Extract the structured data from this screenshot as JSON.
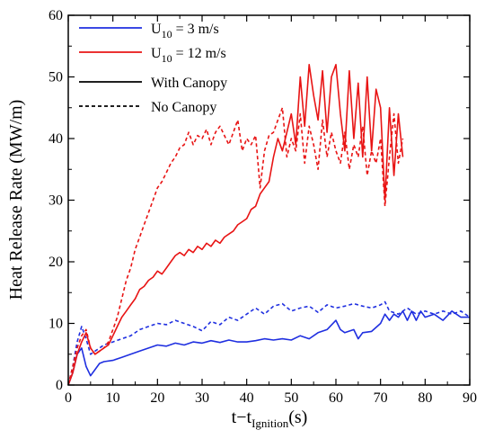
{
  "chart_data": {
    "type": "line",
    "title": "",
    "xlabel": {
      "main": "t−t",
      "sub": "Ignition",
      "tail": "(s)"
    },
    "ylabel": "Heat Release Rate (MW/m)",
    "xlim": [
      0,
      90
    ],
    "ylim": [
      0,
      60
    ],
    "xticks": [
      0,
      10,
      20,
      30,
      40,
      50,
      60,
      70,
      80,
      90
    ],
    "yticks": [
      0,
      10,
      20,
      30,
      40,
      50,
      60
    ],
    "xtick_labels": [
      "0",
      "10",
      "20",
      "30",
      "40",
      "50",
      "60",
      "70",
      "80",
      "90"
    ],
    "ytick_labels": [
      "0",
      "10",
      "20",
      "30",
      "40",
      "50",
      "60"
    ],
    "grid": false,
    "legend_position": "top-left",
    "legend": [
      {
        "prefix": "U",
        "sub": "10",
        "suffix": " = 3  m/s",
        "color": "#1f2fe0",
        "dash": "solid"
      },
      {
        "prefix": "U",
        "sub": "10",
        "suffix": " = 12  m/s",
        "color": "#e81414",
        "dash": "solid"
      },
      {
        "prefix": "With Canopy",
        "sub": "",
        "suffix": "",
        "color": "#000000",
        "dash": "solid"
      },
      {
        "prefix": "No Canopy",
        "sub": "",
        "suffix": "",
        "color": "#000000",
        "dash": "dashed"
      }
    ],
    "series": [
      {
        "wind": "3 m/s",
        "canopy": "with",
        "color": "#1f2fe0",
        "dash": "solid",
        "x": [
          0,
          1,
          2,
          3,
          4,
          5,
          6,
          7,
          8,
          10,
          12,
          14,
          16,
          18,
          20,
          22,
          24,
          26,
          28,
          30,
          32,
          34,
          36,
          38,
          40,
          42,
          44,
          46,
          48,
          50,
          52,
          54,
          56,
          58,
          60,
          61,
          62,
          64,
          65,
          66,
          68,
          70,
          71,
          72,
          73,
          74,
          75,
          76,
          77,
          78,
          79,
          80,
          82,
          84,
          86,
          88,
          90
        ],
        "y": [
          0,
          2,
          5,
          6,
          3,
          1.5,
          2.5,
          3.5,
          3.8,
          4,
          4.5,
          5,
          5.5,
          6,
          6.5,
          6.3,
          6.8,
          6.5,
          7,
          6.8,
          7.2,
          6.9,
          7.3,
          7,
          7,
          7.2,
          7.5,
          7.3,
          7.5,
          7.3,
          8,
          7.5,
          8.5,
          9,
          10.5,
          9,
          8.5,
          9,
          7.5,
          8.5,
          8.7,
          10,
          11.5,
          10.5,
          11.5,
          11,
          12,
          10.5,
          12,
          10.5,
          12,
          11,
          11.5,
          10.5,
          12,
          11,
          11
        ]
      },
      {
        "wind": "3 m/s",
        "canopy": "none",
        "color": "#1f2fe0",
        "dash": "dashed",
        "x": [
          0,
          1,
          2,
          3,
          4,
          5,
          6,
          7,
          8,
          10,
          12,
          14,
          16,
          18,
          20,
          22,
          24,
          26,
          28,
          30,
          32,
          34,
          36,
          38,
          40,
          42,
          44,
          46,
          48,
          50,
          52,
          54,
          56,
          58,
          60,
          62,
          64,
          66,
          68,
          70,
          71,
          72,
          74,
          76,
          78,
          80,
          82,
          84,
          86,
          88,
          90
        ],
        "y": [
          0,
          3,
          7,
          9.5,
          7.5,
          5,
          5.5,
          6,
          6.5,
          7,
          7.5,
          8,
          9,
          9.5,
          10,
          9.8,
          10.5,
          10,
          9.5,
          8.8,
          10.3,
          9.8,
          11,
          10.5,
          11.5,
          12.5,
          11.5,
          12.8,
          13.2,
          12,
          12.5,
          12.8,
          11.8,
          13,
          12.5,
          12.8,
          13.2,
          12.8,
          12.5,
          13,
          13.5,
          12,
          11.5,
          12.5,
          11.5,
          12,
          11.5,
          12,
          11.5,
          12,
          11
        ]
      },
      {
        "wind": "12 m/s",
        "canopy": "with",
        "color": "#e81414",
        "dash": "solid",
        "x": [
          0,
          1,
          2,
          3,
          4,
          5,
          6,
          7,
          8,
          9,
          10,
          11,
          12,
          13,
          14,
          15,
          16,
          17,
          18,
          19,
          20,
          21,
          22,
          23,
          24,
          25,
          26,
          27,
          28,
          29,
          30,
          31,
          32,
          33,
          34,
          35,
          36,
          37,
          38,
          39,
          40,
          41,
          42,
          43,
          44,
          45,
          46,
          47,
          48,
          49,
          50,
          51,
          52,
          53,
          54,
          55,
          56,
          57,
          58,
          59,
          60,
          61,
          62,
          63,
          64,
          65,
          66,
          67,
          68,
          69,
          70,
          71,
          72,
          73,
          74,
          75
        ],
        "y": [
          0,
          2,
          5,
          7,
          8.5,
          6,
          5,
          5.5,
          6,
          6.5,
          8,
          9.5,
          11,
          12,
          13,
          14,
          15.5,
          16,
          17,
          17.5,
          18.5,
          18,
          19,
          20,
          21,
          21.5,
          21,
          22,
          21.5,
          22.5,
          22,
          23,
          22.5,
          23.5,
          23,
          24,
          24.5,
          25,
          26,
          26.5,
          27,
          28.5,
          29,
          31,
          32,
          33,
          37,
          40,
          38,
          41,
          44,
          39,
          50,
          42,
          52,
          47,
          43,
          51,
          41,
          50,
          52,
          44,
          38,
          51,
          40,
          49,
          37,
          50,
          38,
          48,
          45,
          30,
          45,
          34,
          44,
          37
        ]
      },
      {
        "wind": "12 m/s",
        "canopy": "none",
        "color": "#e81414",
        "dash": "dashed",
        "x": [
          0,
          1,
          2,
          3,
          4,
          5,
          6,
          7,
          8,
          9,
          10,
          11,
          12,
          13,
          14,
          15,
          16,
          17,
          18,
          19,
          20,
          21,
          22,
          23,
          24,
          25,
          26,
          27,
          28,
          29,
          30,
          31,
          32,
          33,
          34,
          35,
          36,
          37,
          38,
          39,
          40,
          41,
          42,
          43,
          44,
          45,
          46,
          47,
          48,
          49,
          50,
          51,
          52,
          53,
          54,
          55,
          56,
          57,
          58,
          59,
          60,
          61,
          62,
          63,
          64,
          65,
          66,
          67,
          68,
          69,
          70,
          71,
          72,
          73,
          74,
          75
        ],
        "y": [
          0,
          3,
          6,
          8,
          9,
          6,
          5,
          5.5,
          6,
          7,
          9,
          11,
          14,
          17,
          19,
          22,
          24,
          26,
          28,
          30,
          32,
          33,
          34.5,
          36,
          37,
          38.5,
          39,
          41,
          39,
          40.5,
          40,
          41.5,
          39,
          41,
          42,
          40.5,
          39,
          41,
          43,
          38,
          40,
          39,
          40.5,
          32,
          38,
          40.5,
          41,
          43,
          45,
          37,
          40,
          38,
          44,
          36,
          42,
          39,
          35,
          43,
          37,
          41,
          38,
          36,
          41,
          35,
          39,
          37,
          42,
          34,
          38,
          36,
          40,
          29,
          37,
          44,
          36,
          40
        ]
      }
    ]
  }
}
